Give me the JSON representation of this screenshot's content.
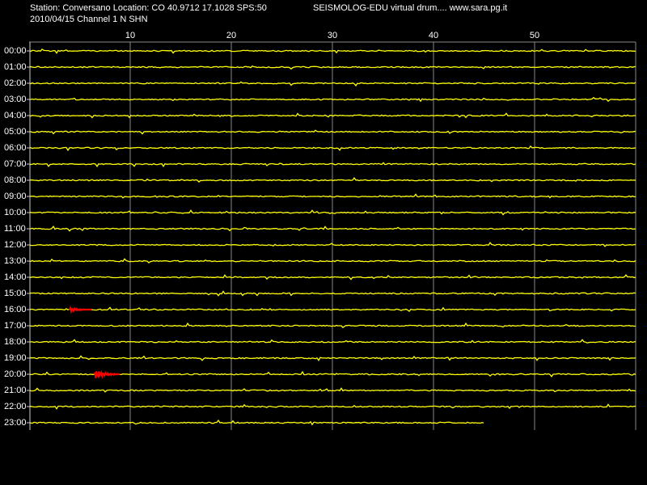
{
  "chart_data": {
    "type": "helicorder",
    "title": "Station: Conversano Location: CO 40.9712 17.1028 SPS:50",
    "subtitle": "2010/04/15  Channel 1 N SHN",
    "source": "SEISMOLOG-EDU virtual drum.... www.sara.pg.it",
    "categories": [
      "00:00",
      "01:00",
      "02:00",
      "03:00",
      "04:00",
      "05:00",
      "06:00",
      "07:00",
      "08:00",
      "09:00",
      "10:00",
      "11:00",
      "12:00",
      "13:00",
      "14:00",
      "15:00",
      "16:00",
      "17:00",
      "18:00",
      "19:00",
      "20:00",
      "21:00",
      "22:00",
      "23:00"
    ],
    "xlim": [
      0,
      60
    ],
    "xticks": [
      10,
      20,
      30,
      40,
      50
    ],
    "grid": true,
    "trace_color": "#ffff00",
    "event_color": "#ff0000",
    "last_trace_end": 45,
    "events": [
      {
        "row": "16:00",
        "x": [
          4,
          6.2
        ]
      },
      {
        "row": "20:00",
        "x": [
          6.5,
          9
        ]
      }
    ]
  }
}
